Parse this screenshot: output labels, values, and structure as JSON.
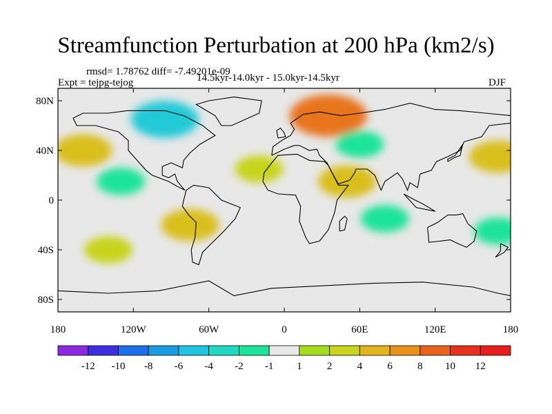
{
  "chart_data": {
    "type": "heatmap",
    "title": "Streamfunction Perturbation at 200 hPa (km2/s)",
    "subtitle_left": "rmsd= 1.78762  diff= -7.49201e-09",
    "subtitle_center": "14.5kyr-14.0kyr - 15.0kyr-14.5kyr",
    "experiment": "Expt = tejpg-tejog",
    "season": "DJF",
    "x_ticks": [
      "180",
      "120W",
      "60W",
      "0",
      "60E",
      "120E",
      "180"
    ],
    "y_ticks": [
      "80N",
      "40N",
      "0",
      "40S",
      "80S"
    ],
    "xlim": [
      -180,
      180
    ],
    "ylim": [
      -90,
      90
    ],
    "colorbar": {
      "labels": [
        "-12",
        "-10",
        "-8",
        "-6",
        "-4",
        "-2",
        "-1",
        "1",
        "2",
        "4",
        "6",
        "8",
        "10",
        "12"
      ],
      "colors": [
        "#8a2be2",
        "#3b2fe0",
        "#1f6fe8",
        "#1c9be0",
        "#1fc4e0",
        "#22d8c3",
        "#1ee39a",
        "#e8e8e8",
        "#a6dc1e",
        "#c8d41e",
        "#e2b41e",
        "#e8921e",
        "#e8641e",
        "#e8301e",
        "#e81e1e"
      ]
    },
    "anomaly_regions": [
      {
        "name": "north-atlantic-siberia-high",
        "lon": 35,
        "lat": 68,
        "value": 8
      },
      {
        "name": "north-america-low",
        "lon": -95,
        "lat": 65,
        "value": -6
      },
      {
        "name": "north-pacific-east-high",
        "lon": -160,
        "lat": 40,
        "value": 4
      },
      {
        "name": "central-pacific-low",
        "lon": -130,
        "lat": 15,
        "value": -2
      },
      {
        "name": "south-america-high",
        "lon": -75,
        "lat": -20,
        "value": 4
      },
      {
        "name": "atlantic-subtropical-high",
        "lon": -20,
        "lat": 25,
        "value": 2
      },
      {
        "name": "north-africa-high",
        "lon": 50,
        "lat": 15,
        "value": 4
      },
      {
        "name": "eurasia-low",
        "lon": 60,
        "lat": 45,
        "value": -2
      },
      {
        "name": "indian-ocean-low",
        "lon": 80,
        "lat": -15,
        "value": -2
      },
      {
        "name": "southern-pacific-low",
        "lon": 170,
        "lat": -25,
        "value": -2
      },
      {
        "name": "south-pacific-high",
        "lon": -140,
        "lat": -40,
        "value": 2
      },
      {
        "name": "west-pacific-high",
        "lon": 170,
        "lat": 35,
        "value": 4
      }
    ]
  }
}
